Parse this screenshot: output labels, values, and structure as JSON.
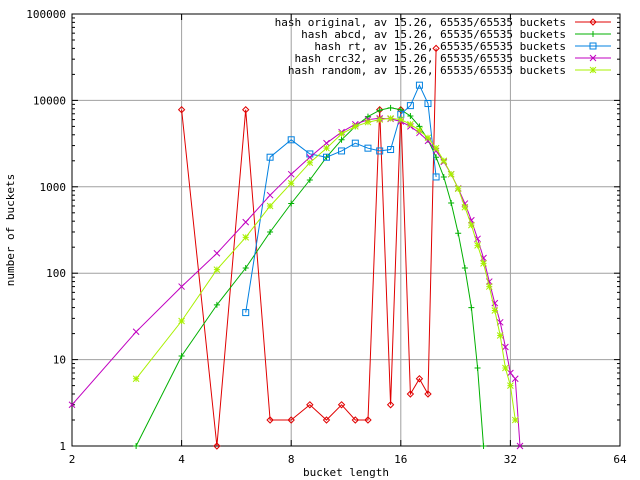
{
  "chart_data": {
    "type": "line",
    "title": "",
    "xlabel": "bucket length",
    "ylabel": "number of buckets",
    "x_scale": "log2",
    "y_scale": "log10",
    "xlim": [
      2,
      64
    ],
    "ylim": [
      1,
      100000
    ],
    "x_ticks": [
      {
        "value": 2,
        "label": "2"
      },
      {
        "value": 4,
        "label": "4"
      },
      {
        "value": 8,
        "label": "8"
      },
      {
        "value": 16,
        "label": "16"
      },
      {
        "value": 32,
        "label": "32"
      },
      {
        "value": 64,
        "label": "64"
      }
    ],
    "y_ticks": [
      {
        "value": 1,
        "label": "1"
      },
      {
        "value": 10,
        "label": "10"
      },
      {
        "value": 100,
        "label": "100"
      },
      {
        "value": 1000,
        "label": "1000"
      },
      {
        "value": 10000,
        "label": "10000"
      },
      {
        "value": 100000,
        "label": "100000"
      }
    ],
    "grid": true,
    "legend_position": "top-right",
    "series": [
      {
        "name": "hash original, av 15.26, 65535/65535 buckets",
        "color": "#e00000",
        "marker": "diamond",
        "x": [
          4,
          5,
          6,
          7,
          8,
          9,
          10,
          11,
          12,
          13,
          14,
          15,
          16,
          17,
          18,
          19,
          20
        ],
        "y": [
          7800,
          1,
          7800,
          2,
          2,
          3,
          2,
          3,
          2,
          2,
          7800,
          3,
          7800,
          4,
          6,
          4,
          40000
        ]
      },
      {
        "name": "hash abcd, av 15.26, 65535/65535 buckets",
        "color": "#00b000",
        "marker": "plus",
        "x": [
          3,
          4,
          5,
          6,
          7,
          8,
          9,
          10,
          11,
          12,
          13,
          14,
          15,
          16,
          17,
          18,
          19,
          20,
          21,
          22,
          23,
          24,
          25,
          26,
          27
        ],
        "y": [
          1,
          11,
          43,
          115,
          300,
          640,
          1200,
          2200,
          3500,
          5000,
          6500,
          7700,
          8200,
          7800,
          6600,
          5000,
          3500,
          2200,
          1300,
          650,
          290,
          115,
          40,
          8,
          1
        ]
      },
      {
        "name": "hash rt, av 15.26, 65535/65535 buckets",
        "color": "#0080e0",
        "marker": "square",
        "x": [
          6,
          7,
          8,
          9,
          10,
          11,
          12,
          13,
          14,
          15,
          16,
          17,
          18,
          19,
          20
        ],
        "y": [
          35,
          2200,
          3500,
          2400,
          2200,
          2600,
          3200,
          2800,
          2600,
          2700,
          6900,
          8700,
          15000,
          9200,
          1300
        ]
      },
      {
        "name": "hash crc32, av 15.26, 65535/65535 buckets",
        "color": "#c000c0",
        "marker": "cross",
        "x": [
          2,
          3,
          4,
          5,
          6,
          7,
          8,
          9,
          10,
          11,
          12,
          13,
          14,
          15,
          16,
          17,
          18,
          19,
          20,
          21,
          22,
          23,
          24,
          25,
          26,
          27,
          28,
          29,
          30,
          31,
          32,
          33,
          34
        ],
        "y": [
          3,
          21,
          70,
          170,
          390,
          800,
          1400,
          2200,
          3200,
          4300,
          5300,
          6000,
          6200,
          6100,
          5700,
          5000,
          4200,
          3400,
          2600,
          1950,
          1400,
          960,
          640,
          410,
          250,
          150,
          80,
          45,
          27,
          14,
          7,
          6,
          1
        ]
      },
      {
        "name": "hash random, av 15.26, 65535/65535 buckets",
        "color": "#a8f000",
        "marker": "star",
        "x": [
          3,
          4,
          5,
          6,
          7,
          8,
          9,
          10,
          11,
          12,
          13,
          14,
          15,
          16,
          17,
          18,
          19,
          20,
          21,
          22,
          23,
          24,
          25,
          26,
          27,
          28,
          29,
          30,
          31,
          32,
          33
        ],
        "y": [
          6,
          28,
          110,
          260,
          600,
          1100,
          1900,
          2800,
          4100,
          5000,
          5600,
          6000,
          6200,
          6000,
          5300,
          4500,
          3700,
          2800,
          2000,
          1400,
          950,
          580,
          360,
          210,
          130,
          70,
          37,
          19,
          8,
          5,
          2
        ]
      }
    ]
  }
}
